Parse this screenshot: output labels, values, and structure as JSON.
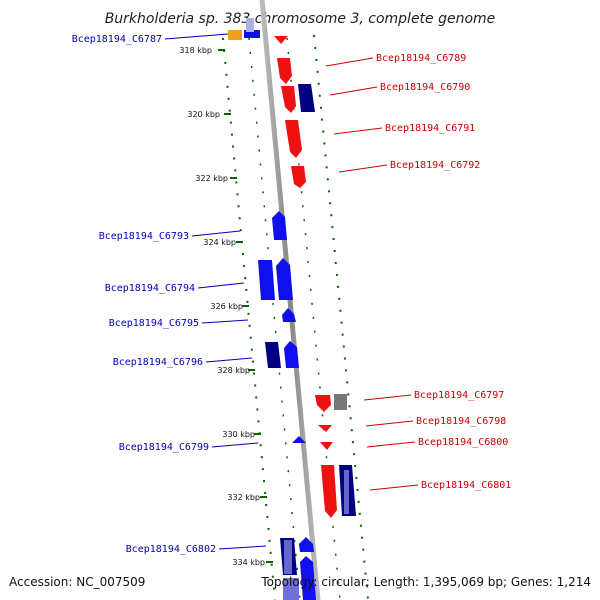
{
  "title": "Burkholderia sp. 383 chromosome 3, complete genome",
  "accession": "Accession: NC_007509",
  "topology": "Topology: circular; Length: 1,395,069 bp; Genes: 1,214",
  "ticks": [
    "318 kbp",
    "320 kbp",
    "322 kbp",
    "324 kbp",
    "326 kbp",
    "328 kbp",
    "330 kbp",
    "332 kbp",
    "334 kbp"
  ],
  "left_labels": [
    "Bcep18194_C6787",
    "Bcep18194_C6793",
    "Bcep18194_C6794",
    "Bcep18194_C6795",
    "Bcep18194_C6796",
    "Bcep18194_C6799",
    "Bcep18194_C6802"
  ],
  "right_labels": [
    "Bcep18194_C6789",
    "Bcep18194_C6790",
    "Bcep18194_C6791",
    "Bcep18194_C6792",
    "Bcep18194_C6797",
    "Bcep18194_C6798",
    "Bcep18194_C6800",
    "Bcep18194_C6801"
  ],
  "colors": {
    "forward": "#1010ee",
    "forward_dark": "#000080",
    "forward_light": "#6666cc",
    "reverse": "#ee1111",
    "other": "#f0a020",
    "gray": "#777777",
    "backbone": "#999999",
    "dots": "#006600",
    "label_left": "#0000bb",
    "label_right": "#cc0000"
  }
}
